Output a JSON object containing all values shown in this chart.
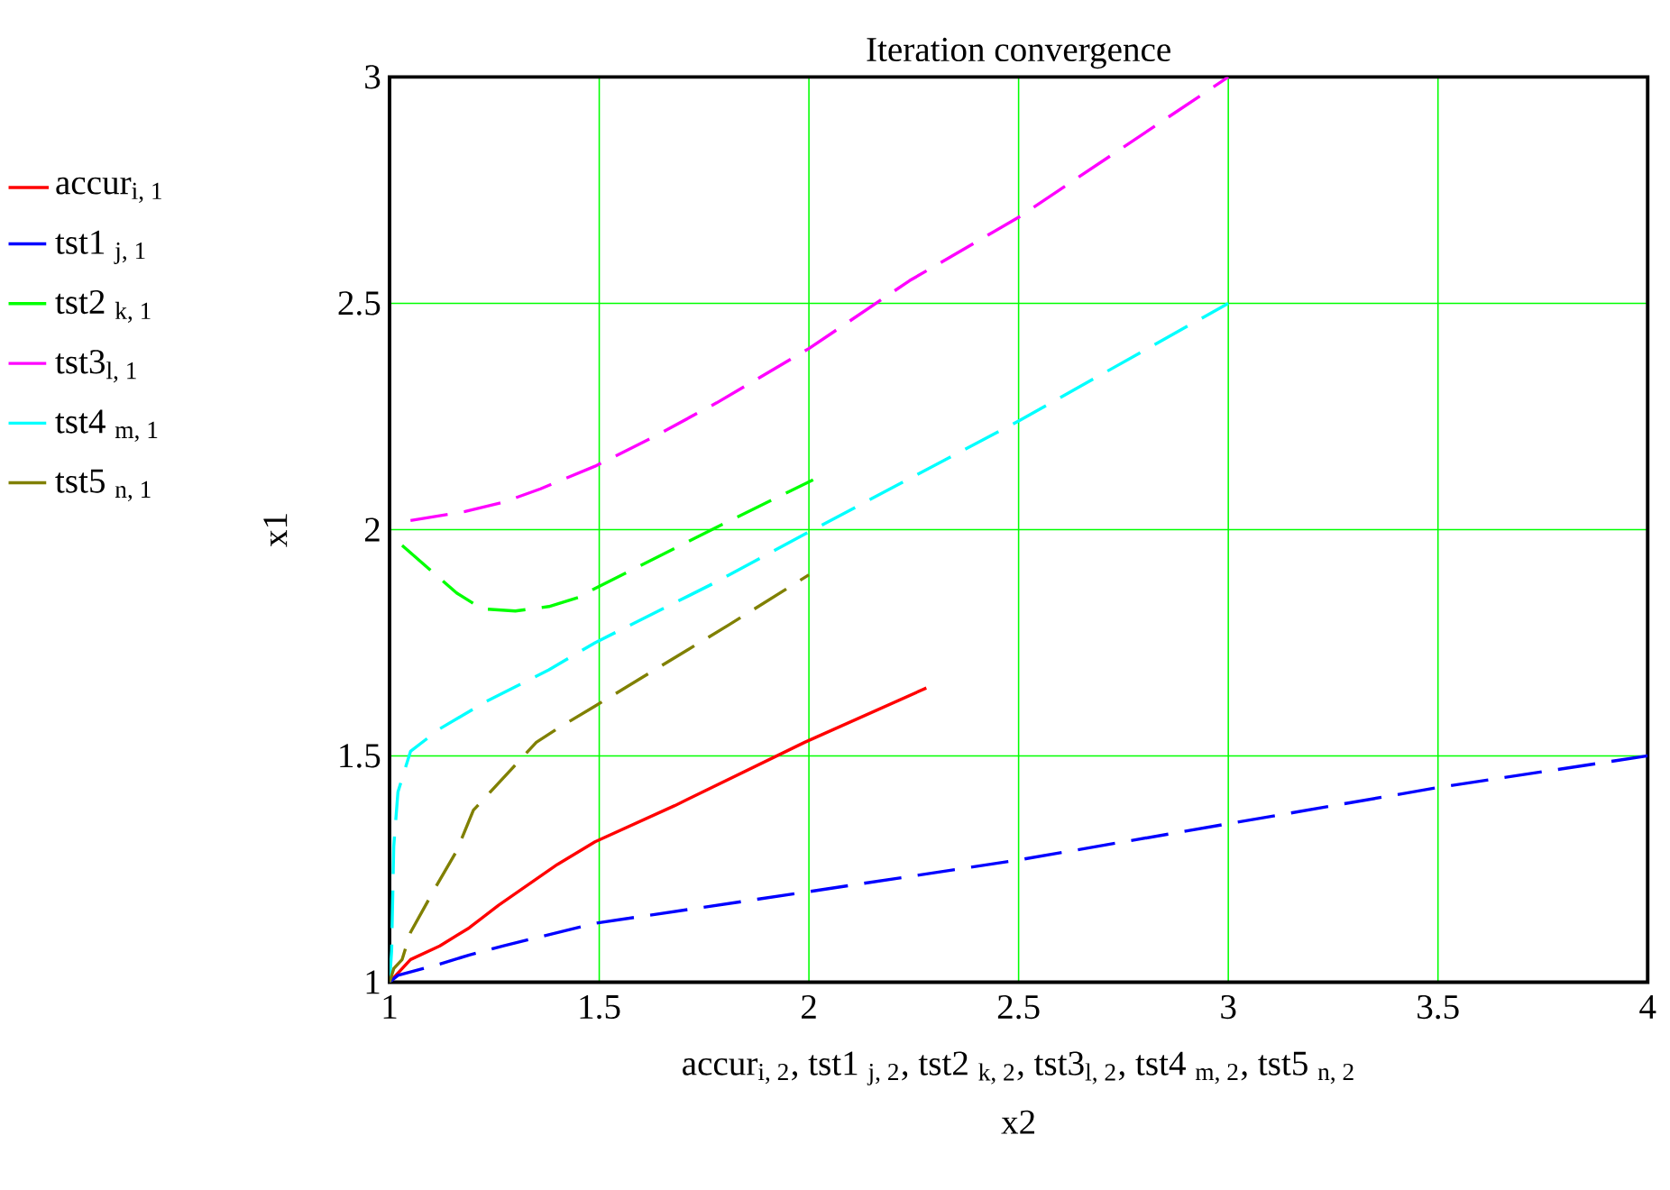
{
  "chart_data": {
    "type": "line",
    "title": "Iteration convergence",
    "xlabel": "x2",
    "ylabel": "x1",
    "annotations": [
      "accur$_{i, 2}$, tst1 $_{j, 2}$, tst2 $_{k, 2}$, tst3$_{l, 2}$, tst4 $_{m, 2}$, tst5 $_{n, 2}$"
    ],
    "xlim": [
      1,
      4
    ],
    "ylim": [
      1,
      3
    ],
    "xticks": [
      1,
      1.5,
      2,
      2.5,
      3,
      3.5,
      4
    ],
    "yticks": [
      1,
      1.5,
      2,
      2.5,
      3
    ],
    "grid": true,
    "legend": "left",
    "marker": "none",
    "series": [
      {
        "name": "accur$_{i, 1}$",
        "color": "#ff0000",
        "line_style": "solid",
        "x": [
          1.0,
          1.05,
          1.12,
          1.19,
          1.26,
          1.4,
          1.49,
          1.68,
          1.99,
          2.28
        ],
        "values": [
          1.0,
          1.05,
          1.08,
          1.12,
          1.17,
          1.26,
          1.31,
          1.39,
          1.53,
          1.65
        ]
      },
      {
        "name": "tst1 $_{j, 1}$",
        "color": "#0000ff",
        "line_style": "dashed",
        "x": [
          1.0,
          1.02,
          1.12,
          1.19,
          1.27,
          1.49,
          2.0,
          2.5,
          3.0,
          3.5,
          4.0
        ],
        "values": [
          1.0,
          1.015,
          1.04,
          1.06,
          1.08,
          1.13,
          1.2,
          1.27,
          1.35,
          1.43,
          1.5
        ]
      },
      {
        "name": "tst2 $_{k, 1}$",
        "color": "#00ff00",
        "line_style": "dashed",
        "x": [
          1.03,
          1.16,
          1.22,
          1.3,
          1.38,
          1.45,
          1.49,
          1.79,
          2.01
        ],
        "values": [
          1.965,
          1.86,
          1.825,
          1.82,
          1.83,
          1.85,
          1.87,
          2.01,
          2.11
        ]
      },
      {
        "name": "tst3$_{l, 1}$",
        "color": "#ff00ff",
        "line_style": "dashed",
        "x": [
          1.05,
          1.18,
          1.27,
          1.36,
          1.49,
          1.62,
          1.78,
          2.0,
          2.24,
          2.5,
          3.0
        ],
        "values": [
          2.02,
          2.04,
          2.06,
          2.09,
          2.14,
          2.2,
          2.28,
          2.4,
          2.55,
          2.69,
          3.0
        ]
      },
      {
        "name": "tst4 $_{m, 1}$",
        "color": "#00ffff",
        "line_style": "dashed",
        "x": [
          1.0,
          1.005,
          1.01,
          1.02,
          1.05,
          1.12,
          1.23,
          1.38,
          1.49,
          1.77,
          1.99,
          2.5,
          3.0
        ],
        "values": [
          1.0,
          1.07,
          1.3,
          1.42,
          1.51,
          1.56,
          1.62,
          1.69,
          1.75,
          1.88,
          1.99,
          2.24,
          2.5
        ]
      },
      {
        "name": "tst5 $_{n, 1}$",
        "color": "#808000",
        "line_style": "dashed",
        "x": [
          1.0,
          1.01,
          1.03,
          1.05,
          1.11,
          1.16,
          1.2,
          1.24,
          1.35,
          1.4,
          1.49,
          1.81,
          2.0
        ],
        "values": [
          1.0,
          1.03,
          1.05,
          1.11,
          1.21,
          1.29,
          1.38,
          1.42,
          1.53,
          1.56,
          1.61,
          1.79,
          1.9
        ]
      }
    ]
  }
}
